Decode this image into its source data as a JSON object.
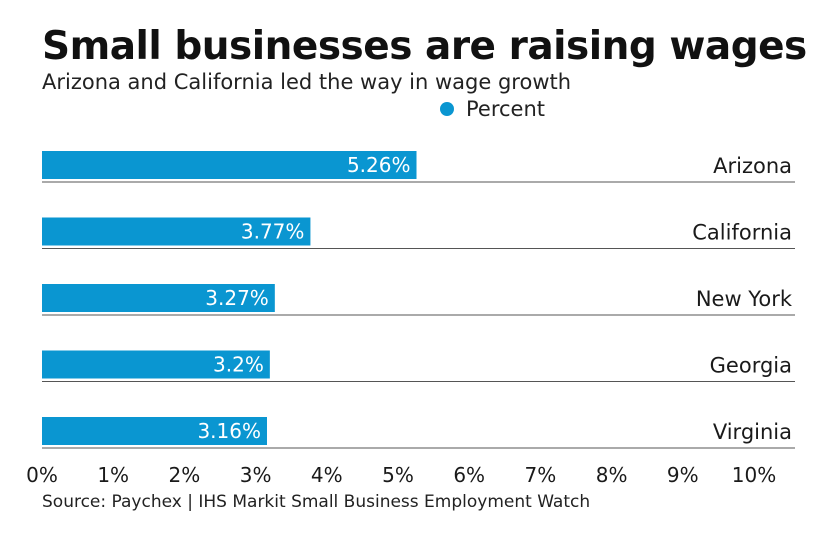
{
  "chart_data": {
    "type": "bar",
    "orientation": "horizontal",
    "title": "Small businesses are raising wages",
    "subtitle": "Arizona and California led the way in wage growth",
    "categories": [
      "Arizona",
      "California",
      "New York",
      "Georgia",
      "Virginia"
    ],
    "series": [
      {
        "name": "Percent",
        "values": [
          5.26,
          3.77,
          3.27,
          3.2,
          3.16
        ],
        "labels": [
          "5.26%",
          "3.77%",
          "3.27%",
          "3.2%",
          "3.16%"
        ],
        "color": "#0a96d1"
      }
    ],
    "xlim": [
      0,
      10
    ],
    "xticks": [
      "0%",
      "1%",
      "2%",
      "3%",
      "4%",
      "5%",
      "6%",
      "7%",
      "8%",
      "9%",
      "10%"
    ],
    "legend_position": "top",
    "source": "Source: Paychex | IHS Markit Small Business Employment Watch"
  }
}
